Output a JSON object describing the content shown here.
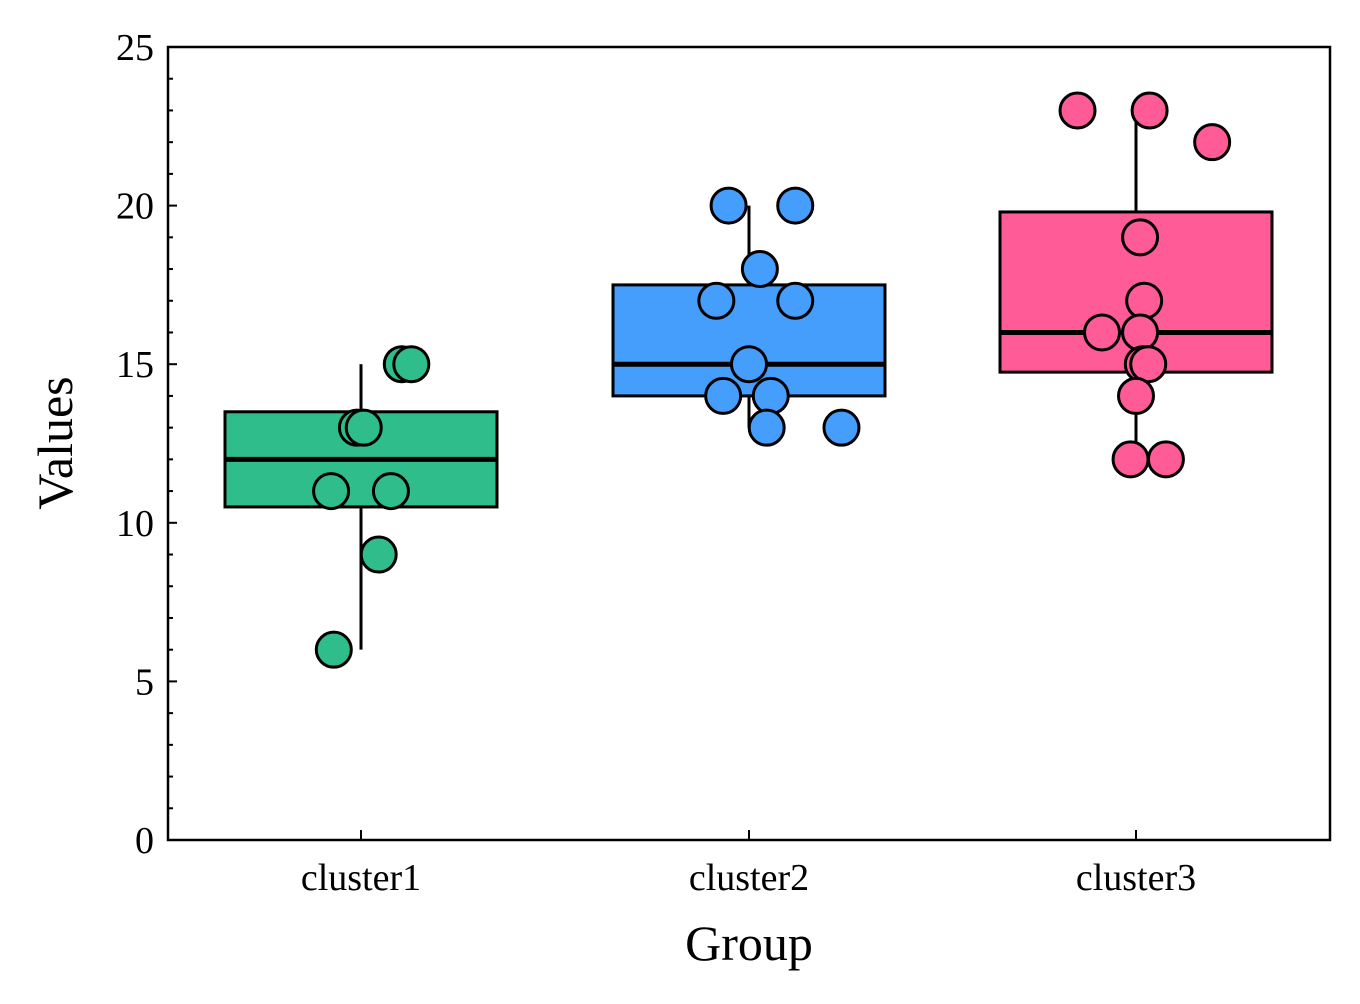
{
  "chart_data": {
    "type": "box",
    "xlabel": "Group",
    "ylabel": "Values",
    "ylim": [
      0,
      25
    ],
    "yticks": [
      0,
      5,
      10,
      15,
      20,
      25
    ],
    "categories": [
      "cluster1",
      "cluster2",
      "cluster3"
    ],
    "grid": false,
    "legend": "none",
    "series": [
      {
        "category": "cluster1",
        "color": "#2fbd8c",
        "box": {
          "q1": 10.5,
          "median": 12,
          "q3": 13.5,
          "whisker_low": 6,
          "whisker_high": 15
        },
        "points": [
          15,
          15,
          13,
          13,
          11,
          11,
          9,
          6
        ],
        "jitter": [
          0.3,
          0.37,
          -0.03,
          0.02,
          -0.22,
          0.22,
          0.13,
          -0.2
        ]
      },
      {
        "category": "cluster2",
        "color": "#459dfc",
        "box": {
          "q1": 14,
          "median": 15,
          "q3": 17.5,
          "whisker_low": 13,
          "whisker_high": 20
        },
        "points": [
          20,
          20,
          18,
          17,
          17,
          15,
          14,
          14,
          13,
          13
        ],
        "jitter": [
          -0.15,
          0.34,
          0.08,
          -0.24,
          0.34,
          0.0,
          -0.19,
          0.16,
          0.13,
          0.68
        ]
      },
      {
        "category": "cluster3",
        "color": "#ff5b97",
        "box": {
          "q1": 14.75,
          "median": 16,
          "q3": 19.8,
          "whisker_low": 12,
          "whisker_high": 23
        },
        "points": [
          23,
          23,
          22,
          19,
          17,
          16,
          16,
          15,
          15,
          14,
          12,
          12
        ],
        "jitter": [
          -0.43,
          0.1,
          0.56,
          0.03,
          0.06,
          -0.25,
          0.03,
          0.05,
          0.09,
          0.0,
          -0.04,
          0.22
        ]
      }
    ]
  }
}
